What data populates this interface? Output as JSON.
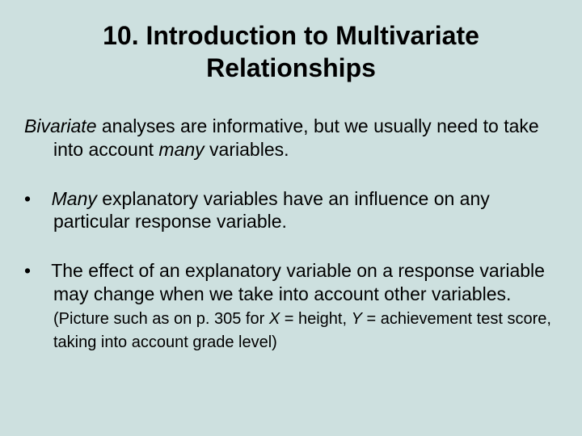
{
  "background_color": "#cde0df",
  "text_color": "#000000",
  "font_family": "Arial, Helvetica, sans-serif",
  "title_fontsize": 32,
  "body_fontsize": 23,
  "small_fontsize": 20,
  "title": "10. Introduction to Multivariate Relationships",
  "para1_italic1": "Bivariate",
  "para1_text1": " analyses are informative, but we usually need to take into account ",
  "para1_italic2": "many",
  "para1_text2": " variables.",
  "bullet1_italic1": "Many",
  "bullet1_text1": " explanatory variables have an influence on any particular response variable.",
  "bullet2_text1": "The effect of an explanatory variable on a response variable may change when we take into account other variables.   ",
  "bullet2_small1": "(Picture such as on p. 305 for ",
  "bullet2_small_italic1": "X",
  "bullet2_small2": " = height, ",
  "bullet2_small_italic2": "Y",
  "bullet2_small3": " = achievement test score, taking into account grade level)"
}
